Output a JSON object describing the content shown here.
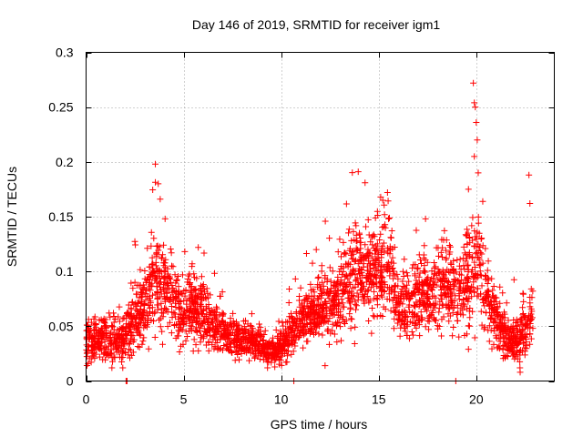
{
  "chart_data": {
    "type": "scatter",
    "title": "Day 146 of 2019, SRMTID for receiver igm1",
    "xlabel": "GPS time / hours",
    "ylabel": "SRMTID / TECUs",
    "xlim": [
      0,
      24
    ],
    "ylim": [
      0,
      0.3
    ],
    "xticks": [
      0,
      5,
      10,
      15,
      20
    ],
    "xtick_labels": [
      "0",
      "5",
      "10",
      "15",
      "20"
    ],
    "yticks": [
      0,
      0.05,
      0.1,
      0.15,
      0.2,
      0.25,
      0.3
    ],
    "ytick_labels": [
      "0",
      "0.05",
      "0.1",
      "0.15",
      "0.2",
      "0.25",
      "0.3"
    ],
    "grid": true,
    "legend": "none",
    "marker": "plus",
    "color": "#ff0000",
    "series": [
      {
        "name": "SRMTID",
        "trend_x": [
          0,
          0.5,
          1,
          1.5,
          2,
          2.5,
          3,
          3.5,
          4,
          4.5,
          5,
          5.5,
          6,
          6.5,
          7,
          7.5,
          8,
          8.5,
          9,
          9.5,
          10,
          10.5,
          11,
          11.5,
          12,
          12.5,
          13,
          13.5,
          14,
          14.5,
          15,
          15.5,
          16,
          16.5,
          17,
          17.5,
          18,
          18.5,
          19,
          19.5,
          20,
          20.5,
          21,
          21.5,
          22,
          22.5,
          22.9
        ],
        "trend_y": [
          0.035,
          0.04,
          0.038,
          0.036,
          0.04,
          0.06,
          0.07,
          0.09,
          0.09,
          0.075,
          0.065,
          0.065,
          0.06,
          0.05,
          0.045,
          0.04,
          0.038,
          0.035,
          0.03,
          0.028,
          0.03,
          0.045,
          0.055,
          0.06,
          0.065,
          0.07,
          0.075,
          0.09,
          0.1,
          0.095,
          0.1,
          0.11,
          0.07,
          0.065,
          0.08,
          0.075,
          0.085,
          0.09,
          0.08,
          0.09,
          0.11,
          0.08,
          0.055,
          0.04,
          0.035,
          0.045,
          0.06
        ],
        "spread_y": [
          0.012,
          0.014,
          0.014,
          0.013,
          0.016,
          0.022,
          0.025,
          0.03,
          0.028,
          0.022,
          0.02,
          0.02,
          0.018,
          0.016,
          0.014,
          0.013,
          0.012,
          0.01,
          0.009,
          0.008,
          0.01,
          0.014,
          0.016,
          0.018,
          0.02,
          0.022,
          0.024,
          0.028,
          0.03,
          0.028,
          0.03,
          0.032,
          0.022,
          0.02,
          0.024,
          0.022,
          0.025,
          0.028,
          0.025,
          0.03,
          0.035,
          0.025,
          0.016,
          0.013,
          0.012,
          0.016,
          0.02
        ],
        "sample_count": 3000,
        "peaks": [
          {
            "x": 3.55,
            "y": 0.198
          },
          {
            "x": 3.7,
            "y": 0.18
          },
          {
            "x": 3.8,
            "y": 0.166
          },
          {
            "x": 4.05,
            "y": 0.148
          },
          {
            "x": 5.75,
            "y": 0.122
          },
          {
            "x": 11.8,
            "y": 0.12
          },
          {
            "x": 13.95,
            "y": 0.191
          },
          {
            "x": 14.3,
            "y": 0.181
          },
          {
            "x": 15.1,
            "y": 0.168
          },
          {
            "x": 15.45,
            "y": 0.172
          },
          {
            "x": 19.85,
            "y": 0.272
          },
          {
            "x": 19.9,
            "y": 0.254
          },
          {
            "x": 19.95,
            "y": 0.25
          },
          {
            "x": 20.0,
            "y": 0.236
          },
          {
            "x": 20.05,
            "y": 0.22
          },
          {
            "x": 19.9,
            "y": 0.205
          },
          {
            "x": 20.1,
            "y": 0.19
          },
          {
            "x": 19.6,
            "y": 0.175
          },
          {
            "x": 22.7,
            "y": 0.188
          },
          {
            "x": 22.75,
            "y": 0.162
          },
          {
            "x": 17.4,
            "y": 0.148
          },
          {
            "x": 12.1,
            "y": 0.09
          }
        ],
        "zero_points": [
          {
            "x": 2.05,
            "y": 0.0
          },
          {
            "x": 2.1,
            "y": 0.0
          },
          {
            "x": 10.65,
            "y": 0.0
          },
          {
            "x": 18.95,
            "y": 0.0
          }
        ],
        "low_points": [
          {
            "x": 22.25,
            "y": 0.008
          },
          {
            "x": 9.3,
            "y": 0.012
          },
          {
            "x": 19.6,
            "y": 0.029
          },
          {
            "x": 12.25,
            "y": 0.014
          }
        ]
      }
    ]
  }
}
